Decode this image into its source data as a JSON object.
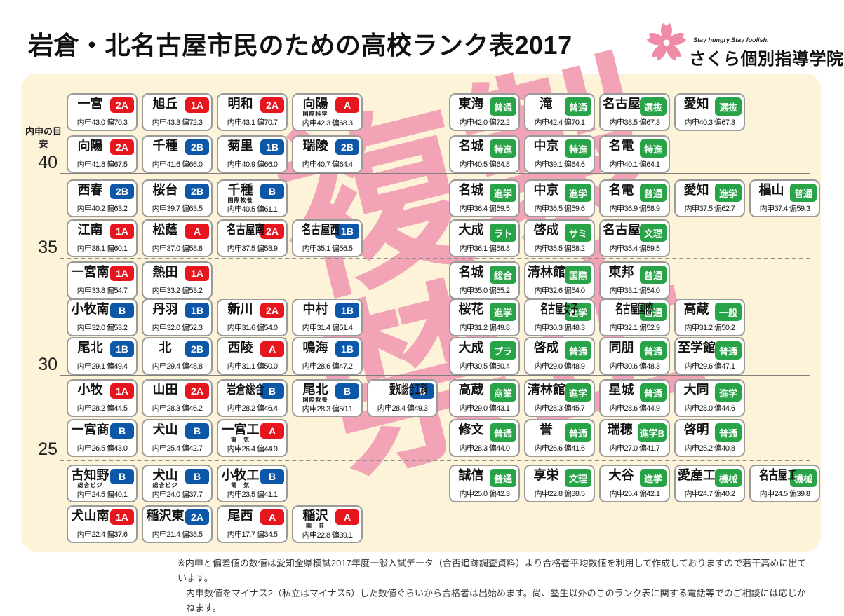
{
  "header": {
    "title": "岩倉・北名古屋市民のための高校ランク表2017",
    "logo": {
      "tagline": "Stay hungry.Stay foolish.",
      "name": "さくら個別指導学院"
    }
  },
  "axis": {
    "caption": "内申の目安",
    "ticks": [
      {
        "value": "40",
        "style": "solid"
      },
      {
        "value": "35",
        "style": "dashed"
      },
      {
        "value": "30",
        "style": "solid"
      },
      {
        "value": "25",
        "style": "dashed"
      }
    ]
  },
  "watermark": {
    "line1": "複製",
    "line2": "禁止"
  },
  "colors": {
    "badge_red": "#e7151d",
    "badge_blue": "#0d57a9",
    "badge_green": "#28a347",
    "watermark_pink": "#f2a3b5",
    "panel_bg": "#fcf3d8",
    "logo_pink": "#ef8ba6"
  },
  "rows": [
    {
      "left": [
        {
          "name": "一宮",
          "sub": "",
          "badge": "2A",
          "color": "r",
          "stats": "内申43.0 偏70.3"
        },
        {
          "name": "旭丘",
          "sub": "",
          "badge": "1A",
          "color": "r",
          "stats": "内申43.3 偏72.3"
        },
        {
          "name": "明和",
          "sub": "",
          "badge": "2A",
          "color": "r",
          "stats": "内申43.1 偏70.7"
        },
        {
          "name": "向陽",
          "sub": "国際科学",
          "badge": "A",
          "color": "r",
          "stats": "内申42.3 偏68.3"
        }
      ],
      "right": [
        {
          "name": "東海",
          "sub": "",
          "badge": "普通",
          "color": "g",
          "stats": "内申42.0 偏72.2"
        },
        {
          "name": "滝",
          "sub": "",
          "badge": "普通",
          "color": "g",
          "stats": "内申42.4 偏70.1"
        },
        {
          "name": "名古屋",
          "sub": "",
          "badge": "選抜",
          "color": "g",
          "stats": "内申38.5 偏67.3"
        },
        {
          "name": "愛知",
          "sub": "",
          "badge": "選抜",
          "color": "g",
          "stats": "内申40.3 偏67.3"
        }
      ]
    },
    {
      "left": [
        {
          "name": "向陽",
          "sub": "",
          "badge": "2A",
          "color": "r",
          "stats": "内申41.8 偏67.5"
        },
        {
          "name": "千種",
          "sub": "",
          "badge": "2B",
          "color": "b",
          "stats": "内申41.6 偏66.0"
        },
        {
          "name": "菊里",
          "sub": "",
          "badge": "1B",
          "color": "b",
          "stats": "内申40.9 偏66.0"
        },
        {
          "name": "瑞陵",
          "sub": "",
          "badge": "2B",
          "color": "b",
          "stats": "内申40.7 偏64.4"
        }
      ],
      "right": [
        {
          "name": "名城",
          "sub": "",
          "badge": "特進",
          "color": "g",
          "stats": "内申40.5 偏64.8"
        },
        {
          "name": "中京",
          "sub": "",
          "badge": "特進",
          "color": "g",
          "stats": "内申39.1 偏64.6"
        },
        {
          "name": "名電",
          "sub": "",
          "badge": "特進",
          "color": "g",
          "stats": "内申40.1 偏64.1"
        }
      ]
    },
    {
      "left": [
        {
          "name": "西春",
          "sub": "",
          "badge": "2B",
          "color": "b",
          "stats": "内申40.2 偏63.2"
        },
        {
          "name": "桜台",
          "sub": "",
          "badge": "2B",
          "color": "b",
          "stats": "内申39.7 偏63.5"
        },
        {
          "name": "千種",
          "sub": "国際教養",
          "badge": "B",
          "color": "b",
          "stats": "内申40.5 偏61.1"
        }
      ],
      "right": [
        {
          "name": "名城",
          "sub": "",
          "badge": "進学",
          "color": "g",
          "stats": "内申36.4 偏59.5"
        },
        {
          "name": "中京",
          "sub": "",
          "badge": "進学",
          "color": "g",
          "stats": "内申36.5 偏59.6"
        },
        {
          "name": "名電",
          "sub": "",
          "badge": "普通",
          "color": "g",
          "stats": "内申36.9 偏58.9"
        },
        {
          "name": "愛知",
          "sub": "",
          "badge": "進学",
          "color": "g",
          "stats": "内申37.5 偏62.7"
        },
        {
          "name": "椙山",
          "sub": "",
          "badge": "普通",
          "color": "g",
          "stats": "内申37.4 偏59.3"
        }
      ]
    },
    {
      "left": [
        {
          "name": "江南",
          "sub": "",
          "badge": "1A",
          "color": "r",
          "stats": "内申38.1 偏60.1"
        },
        {
          "name": "松蔭",
          "sub": "",
          "badge": "A",
          "color": "r",
          "stats": "内申37.0 偏58.8"
        },
        {
          "name": "名古屋南",
          "sub": "",
          "badge": "2A",
          "color": "r",
          "stats": "内申37.5 偏58.9"
        },
        {
          "name": "名古屋西",
          "sub": "",
          "badge": "1B",
          "color": "b",
          "stats": "内申35.1 偏56.5"
        }
      ],
      "right": [
        {
          "name": "大成",
          "sub": "",
          "badge": "ラト",
          "color": "g",
          "stats": "内申36.1 偏58.8"
        },
        {
          "name": "啓成",
          "sub": "",
          "badge": "サミ",
          "color": "g",
          "stats": "内申35.5 偏58.2"
        },
        {
          "name": "名古屋",
          "sub": "",
          "badge": "文理",
          "color": "g",
          "stats": "内申35.4 偏59.5"
        }
      ]
    },
    {
      "left": [
        {
          "name": "一宮南",
          "sub": "",
          "badge": "1A",
          "color": "r",
          "stats": "内申33.8 偏54.7"
        },
        {
          "name": "熱田",
          "sub": "",
          "badge": "1A",
          "color": "r",
          "stats": "内申33.2 偏53.2"
        }
      ],
      "right": [
        {
          "name": "名城",
          "sub": "",
          "badge": "総合",
          "color": "g",
          "stats": "内申35.0 偏55.2"
        },
        {
          "name": "清林館",
          "sub": "",
          "badge": "国際",
          "color": "g",
          "stats": "内申32.6 偏54.0"
        },
        {
          "name": "東邦",
          "sub": "",
          "badge": "普通",
          "color": "g",
          "stats": "内申33.1 偏54.0"
        }
      ]
    },
    {
      "left": [
        {
          "name": "小牧南",
          "sub": "",
          "badge": "B",
          "color": "b",
          "stats": "内申32.0 偏53.2"
        },
        {
          "name": "丹羽",
          "sub": "",
          "badge": "1B",
          "color": "b",
          "stats": "内申32.0 偏52.3"
        },
        {
          "name": "新川",
          "sub": "",
          "badge": "2A",
          "color": "r",
          "stats": "内申31.6 偏54.0"
        },
        {
          "name": "中村",
          "sub": "",
          "badge": "1B",
          "color": "b",
          "stats": "内申31.4 偏51.4"
        }
      ],
      "right": [
        {
          "name": "桜花",
          "sub": "",
          "badge": "進学",
          "color": "g",
          "stats": "内申31.2 偏49.8"
        },
        {
          "name": "名古屋女子",
          "sub": "",
          "badge": "進学",
          "color": "g",
          "stats": "内申30.3 偏48.3"
        },
        {
          "name": "名古屋国際",
          "sub": "",
          "badge": "普通",
          "color": "g",
          "stats": "内申32.1 偏52.9"
        },
        {
          "name": "高蔵",
          "sub": "",
          "badge": "一般",
          "color": "g",
          "stats": "内申31.2 偏50.2"
        }
      ]
    },
    {
      "left": [
        {
          "name": "尾北",
          "sub": "",
          "badge": "1B",
          "color": "b",
          "stats": "内申29.1 偏49.4"
        },
        {
          "name": "北",
          "sub": "",
          "badge": "2B",
          "color": "b",
          "stats": "内申29.4 偏48.8"
        },
        {
          "name": "西陵",
          "sub": "",
          "badge": "A",
          "color": "r",
          "stats": "内申31.1 偏50.0"
        },
        {
          "name": "鳴海",
          "sub": "",
          "badge": "1B",
          "color": "b",
          "stats": "内申28.6 偏47.2"
        }
      ],
      "right": [
        {
          "name": "大成",
          "sub": "",
          "badge": "プラ",
          "color": "g",
          "stats": "内申30.5 偏50.4"
        },
        {
          "name": "啓成",
          "sub": "",
          "badge": "普通",
          "color": "g",
          "stats": "内申29.0 偏48.9"
        },
        {
          "name": "同朋",
          "sub": "",
          "badge": "普通",
          "color": "g",
          "stats": "内申30.6 偏48.3"
        },
        {
          "name": "至学館",
          "sub": "",
          "badge": "普通",
          "color": "g",
          "stats": "内申29.6 偏47.1"
        }
      ]
    },
    {
      "left": [
        {
          "name": "小牧",
          "sub": "",
          "badge": "1A",
          "color": "r",
          "stats": "内申28.2 偏44.5"
        },
        {
          "name": "山田",
          "sub": "",
          "badge": "2A",
          "color": "r",
          "stats": "内申28.3 偏46.2"
        },
        {
          "name": "岩倉総合",
          "sub": "",
          "badge": "B",
          "color": "b",
          "stats": "内申28.2 偏46.4"
        },
        {
          "name": "尾北",
          "sub": "国際教養",
          "badge": "B",
          "color": "b",
          "stats": "内申28.3 偏50.1"
        },
        {
          "name": "愛知総合工科",
          "sub": "",
          "badge": "B",
          "color": "b",
          "stats": "内申28.4 偏49.3"
        }
      ],
      "right": [
        {
          "name": "高蔵",
          "sub": "",
          "badge": "商業",
          "color": "g",
          "stats": "内申29.0 偏43.1"
        },
        {
          "name": "清林館",
          "sub": "",
          "badge": "進学",
          "color": "g",
          "stats": "内申28.3 偏45.7"
        },
        {
          "name": "星城",
          "sub": "",
          "badge": "普通",
          "color": "g",
          "stats": "内申28.6 偏44.9"
        },
        {
          "name": "大同",
          "sub": "",
          "badge": "進学",
          "color": "g",
          "stats": "内申28.0 偏44.6"
        }
      ]
    },
    {
      "left": [
        {
          "name": "一宮商",
          "sub": "",
          "badge": "B",
          "color": "b",
          "stats": "内申26.5 偏43.0"
        },
        {
          "name": "犬山",
          "sub": "",
          "badge": "B",
          "color": "b",
          "stats": "内申25.4 偏42.7"
        },
        {
          "name": "一宮工",
          "sub": "電　気",
          "badge": "A",
          "color": "r",
          "stats": "内申26.4 偏44.9"
        }
      ],
      "right": [
        {
          "name": "修文",
          "sub": "",
          "badge": "普通",
          "color": "g",
          "stats": "内申28.3 偏44.0"
        },
        {
          "name": "誉",
          "sub": "",
          "badge": "普通",
          "color": "g",
          "stats": "内申26.6 偏41.6"
        },
        {
          "name": "瑞穂",
          "sub": "",
          "badge": "進学B",
          "color": "g",
          "stats": "内申27.0 偏41.7"
        },
        {
          "name": "啓明",
          "sub": "",
          "badge": "普通",
          "color": "g",
          "stats": "内申25.2 偏40.8"
        }
      ]
    },
    {
      "left": [
        {
          "name": "古知野",
          "sub": "総合ビジ",
          "badge": "B",
          "color": "b",
          "stats": "内申24.5 偏40.1"
        },
        {
          "name": "犬山",
          "sub": "総合ビジ",
          "badge": "B",
          "color": "b",
          "stats": "内申24.0 偏37.7"
        },
        {
          "name": "小牧工",
          "sub": "電　気",
          "badge": "B",
          "color": "b",
          "stats": "内申23.5 偏41.1"
        }
      ],
      "right": [
        {
          "name": "誠信",
          "sub": "",
          "badge": "普通",
          "color": "g",
          "stats": "内申25.0 偏42.3"
        },
        {
          "name": "享栄",
          "sub": "",
          "badge": "文理",
          "color": "g",
          "stats": "内申22.8 偏38.5"
        },
        {
          "name": "大谷",
          "sub": "",
          "badge": "進学",
          "color": "g",
          "stats": "内申25.4 偏42.1"
        },
        {
          "name": "愛産工",
          "sub": "",
          "badge": "機械",
          "color": "g",
          "stats": "内申24.7 偏40.2"
        },
        {
          "name": "名古屋工",
          "sub": "",
          "badge": "機械",
          "color": "g",
          "stats": "内申24.5 偏39.8"
        }
      ]
    },
    {
      "left": [
        {
          "name": "犬山南",
          "sub": "",
          "badge": "1A",
          "color": "r",
          "stats": "内申22.4 偏37.6"
        },
        {
          "name": "稲沢東",
          "sub": "",
          "badge": "2A",
          "color": "b",
          "stats": "内申21.4 偏38.5"
        },
        {
          "name": "尾西",
          "sub": "",
          "badge": "A",
          "color": "r",
          "stats": "内申17.7 偏34.5"
        },
        {
          "name": "稲沢",
          "sub": "園　芸",
          "badge": "A",
          "color": "r",
          "stats": "内申22.8 偏39.1"
        }
      ],
      "right": []
    }
  ],
  "footnote": {
    "line1": "※内申と偏差値の数値は愛知全県模試2017年度一般入試データ（合否追跡調査資料）より合格者平均数値を利用して作成しておりますので若干高めに出ています。",
    "line2": "内申数値をマイナス2（私立はマイナス5）した数値ぐらいから合格者は出始めます。尚、塾生以外のこのランク表に関する電話等でのご相談には応じかねます。"
  }
}
